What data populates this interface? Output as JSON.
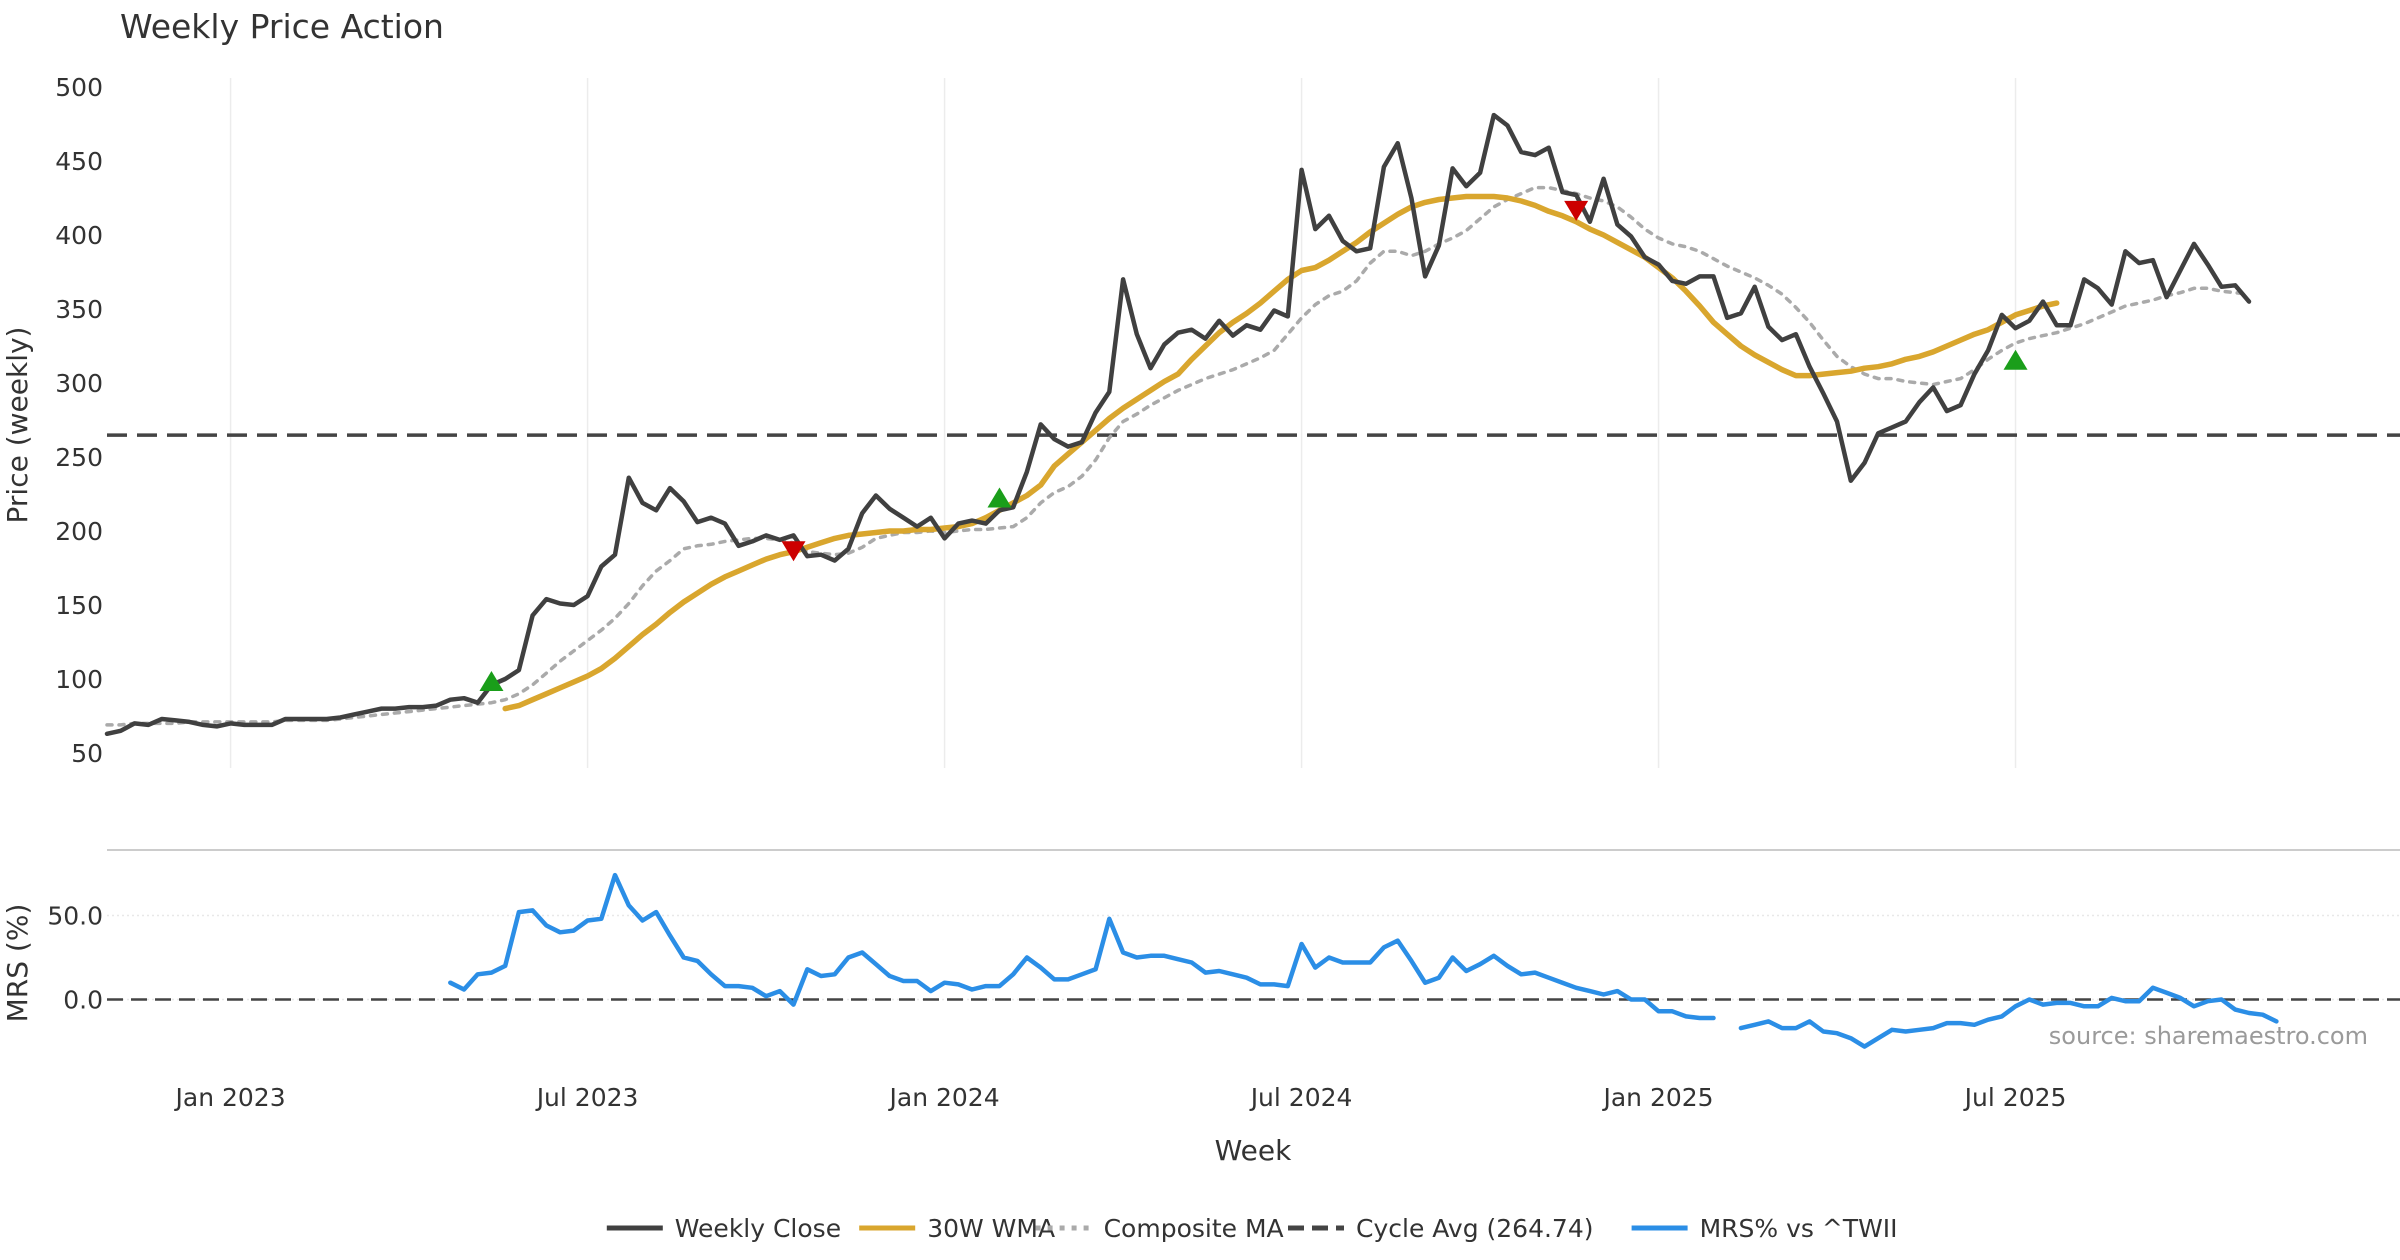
{
  "chart_data": {
    "title": "Weekly Price Action",
    "source": "source: sharemaestro.com",
    "xlabel": "Week",
    "x_ticks": [
      {
        "label": "Jan 2023",
        "week": 13
      },
      {
        "label": "Jul 2023",
        "week": 39
      },
      {
        "label": "Jan 2024",
        "week": 65
      },
      {
        "label": "Jul 2024",
        "week": 91
      },
      {
        "label": "Jan 2025",
        "week": 117
      },
      {
        "label": "Jul 2025",
        "week": 143
      }
    ],
    "x_range": [
      4,
      171
    ],
    "price_panel": {
      "type": "line",
      "ylabel": "Price (weekly)",
      "ylim": [
        50,
        500
      ],
      "yticks": [
        50,
        100,
        150,
        200,
        250,
        300,
        350,
        400,
        450,
        500
      ],
      "cycle_avg": 264.74,
      "series": [
        {
          "name": "Weekly Close",
          "color": "#404040",
          "style": "solid",
          "start_week": 4,
          "values": [
            63,
            65,
            70,
            69,
            73,
            72,
            71,
            69,
            68,
            70,
            69,
            69,
            69,
            73,
            73,
            73,
            73,
            74,
            76,
            78,
            80,
            80,
            81,
            81,
            82,
            86,
            87,
            84,
            96,
            100,
            106,
            143,
            154,
            151,
            150,
            156,
            176,
            184,
            236,
            219,
            214,
            229,
            220,
            206,
            209,
            205,
            190,
            193,
            197,
            194,
            197,
            183,
            184,
            180,
            188,
            212,
            224,
            215,
            209,
            203,
            209,
            195,
            205,
            207,
            205,
            214,
            216,
            240,
            272,
            262,
            257,
            260,
            280,
            294,
            370,
            333,
            310,
            326,
            334,
            336,
            330,
            342,
            332,
            339,
            336,
            349,
            345,
            444,
            404,
            413,
            396,
            389,
            391,
            446,
            462,
            425,
            372,
            393,
            445,
            433,
            442,
            481,
            474,
            456,
            454,
            459,
            429,
            427,
            409,
            438,
            407,
            399,
            385,
            380,
            369,
            367,
            372,
            372,
            344,
            347,
            365,
            338,
            329,
            333,
            311,
            293,
            274,
            234,
            246,
            266,
            270,
            274,
            287,
            297,
            281,
            285,
            306,
            322,
            346,
            337,
            342,
            355,
            339,
            339,
            370,
            364,
            353,
            389,
            381,
            383,
            358,
            376,
            394,
            380,
            365,
            366,
            355
          ]
        },
        {
          "name": "30W WMA",
          "color": "#d9a62e",
          "style": "solid",
          "start_week": 33,
          "values": [
            80,
            82,
            86,
            90,
            94,
            98,
            102,
            107,
            114,
            122,
            130,
            137,
            145,
            152,
            158,
            164,
            169,
            173,
            177,
            181,
            184,
            186,
            189,
            192,
            195,
            197,
            198,
            199,
            200,
            200,
            201,
            201,
            202,
            203,
            205,
            209,
            214,
            219,
            224,
            231,
            244,
            252,
            260,
            268,
            276,
            283,
            289,
            295,
            301,
            306,
            316,
            325,
            334,
            341,
            347,
            354,
            362,
            370,
            376,
            378,
            383,
            389,
            395,
            402,
            408,
            414,
            419,
            422,
            424,
            425,
            426,
            426,
            426,
            425,
            423,
            420,
            416,
            413,
            409,
            404,
            400,
            395,
            390,
            385,
            378,
            371,
            362,
            352,
            341,
            333,
            325,
            319,
            314,
            309,
            305,
            305,
            306,
            307,
            308,
            310,
            311,
            313,
            316,
            318,
            321,
            325,
            329,
            333,
            336,
            341,
            346,
            349,
            352,
            354
          ]
        },
        {
          "name": "Composite MA",
          "color": "#aaaaaa",
          "style": "dotted",
          "start_week": 4,
          "values": [
            69,
            69,
            70,
            70,
            70,
            70,
            71,
            71,
            71,
            71,
            71,
            71,
            71,
            72,
            72,
            72,
            72,
            73,
            74,
            75,
            76,
            77,
            78,
            79,
            80,
            81,
            82,
            83,
            84,
            86,
            90,
            96,
            104,
            112,
            119,
            126,
            133,
            141,
            151,
            163,
            173,
            180,
            188,
            190,
            191,
            193,
            194,
            195,
            195,
            194,
            192,
            186,
            185,
            184,
            185,
            189,
            195,
            197,
            199,
            199,
            200,
            199,
            200,
            201,
            201,
            202,
            203,
            209,
            219,
            226,
            230,
            237,
            248,
            263,
            274,
            279,
            285,
            290,
            295,
            299,
            303,
            306,
            309,
            313,
            317,
            322,
            333,
            344,
            353,
            359,
            362,
            369,
            381,
            389,
            389,
            386,
            389,
            394,
            398,
            403,
            411,
            419,
            424,
            428,
            432,
            432,
            430,
            428,
            425,
            423,
            419,
            412,
            404,
            398,
            394,
            392,
            389,
            384,
            379,
            375,
            371,
            366,
            360,
            351,
            341,
            329,
            318,
            311,
            306,
            303,
            303,
            301,
            300,
            299,
            301,
            303,
            309,
            316,
            322,
            327,
            330,
            332,
            334,
            337,
            340,
            344,
            348,
            352,
            354,
            356,
            359,
            361,
            364,
            364,
            362,
            361,
            360
          ]
        }
      ],
      "signals": [
        {
          "type": "buy",
          "week": 32,
          "value": 98,
          "color": "#1a9e1a"
        },
        {
          "type": "sell",
          "week": 54,
          "value": 187,
          "color": "#cc0000"
        },
        {
          "type": "buy",
          "week": 69,
          "value": 222,
          "color": "#1a9e1a"
        },
        {
          "type": "sell",
          "week": 111,
          "value": 417,
          "color": "#cc0000"
        },
        {
          "type": "buy",
          "week": 143,
          "value": 315,
          "color": "#1a9e1a"
        }
      ]
    },
    "mrs_panel": {
      "type": "line",
      "ylabel": "MRS (%)",
      "ylim": [
        -30,
        80
      ],
      "yticks": [
        0.0,
        50.0
      ],
      "ytick_labels": [
        "0.0",
        "50.0"
      ],
      "zero_line": 0,
      "series": [
        {
          "name": "MRS% vs ^TWII",
          "color": "#2b8ee6",
          "segments": [
            {
              "start_week": 29,
              "values": [
                10,
                6,
                15,
                16,
                20,
                52,
                53,
                44,
                40,
                41,
                47,
                48,
                74,
                56,
                47,
                52,
                38,
                25,
                23,
                15,
                8,
                8,
                7,
                2,
                5,
                -3,
                18,
                14,
                15,
                25,
                28,
                21,
                14,
                11,
                11,
                5,
                10,
                9,
                6,
                8,
                8,
                15,
                25,
                19,
                12,
                12,
                15,
                18,
                48,
                28,
                25,
                26,
                26,
                24,
                22,
                16,
                17,
                15,
                13,
                9,
                9,
                8,
                33,
                19,
                25,
                22,
                22,
                22,
                31,
                35,
                23,
                10,
                13,
                25,
                17,
                21,
                26,
                20,
                15,
                16,
                13,
                10,
                7,
                5,
                3,
                5,
                0,
                0,
                -7,
                -7,
                -10,
                -11,
                -11
              ]
            },
            {
              "start_week": 123,
              "values": [
                -17,
                -15,
                -13,
                -17,
                -17,
                -13,
                -19,
                -20,
                -23,
                -28,
                -23,
                -18,
                -19,
                -18,
                -17,
                -14,
                -14,
                -15,
                -12,
                -10,
                -4,
                0,
                -3,
                -2,
                -2,
                -4,
                -4,
                1,
                -1,
                -1,
                7,
                4,
                1,
                -4,
                -1,
                0,
                -6,
                -8,
                -9,
                -13
              ]
            }
          ]
        }
      ]
    },
    "legend": [
      {
        "label": "Weekly Close",
        "color": "#404040",
        "style": "solid"
      },
      {
        "label": "30W WMA",
        "color": "#d9a62e",
        "style": "solid"
      },
      {
        "label": "Composite MA",
        "color": "#aaaaaa",
        "style": "dotted"
      },
      {
        "label": "Cycle Avg (264.74)",
        "color": "#444444",
        "style": "dashed"
      },
      {
        "label": "MRS% vs ^TWII",
        "color": "#2b8ee6",
        "style": "solid"
      }
    ]
  }
}
